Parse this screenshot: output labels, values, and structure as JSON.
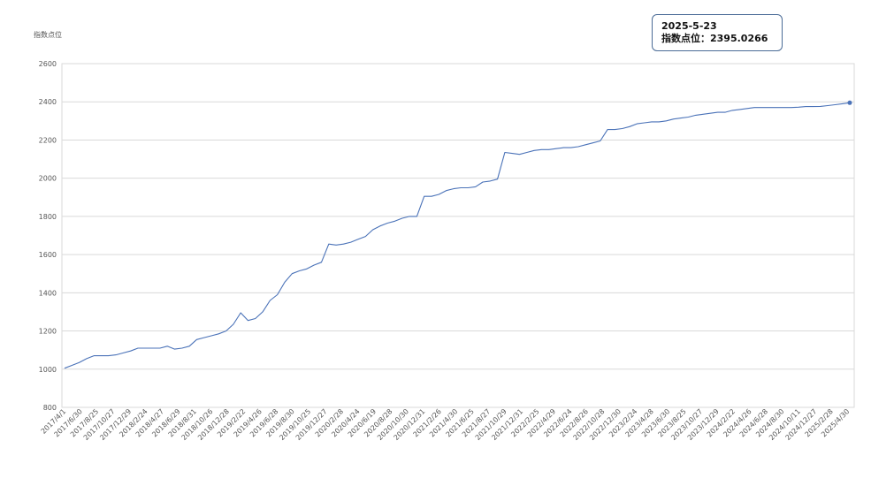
{
  "chart_data": {
    "type": "line",
    "ylabel": "指数点位",
    "ylim": [
      800,
      2600
    ],
    "yticks": [
      800,
      1000,
      1200,
      1400,
      1600,
      1800,
      2000,
      2200,
      2400,
      2600
    ],
    "grid": true,
    "x_tick_labels": [
      "2017/4/1",
      "2017/6/30",
      "2017/8/25",
      "2017/10/27",
      "2017/12/29",
      "2018/2/24",
      "2018/4/27",
      "2018/6/29",
      "2018/8/31",
      "2018/10/26",
      "2018/12/28",
      "2019/2/22",
      "2019/4/26",
      "2019/6/28",
      "2019/8/30",
      "2019/10/25",
      "2019/12/27",
      "2020/2/28",
      "2020/4/24",
      "2020/6/19",
      "2020/8/28",
      "2020/10/30",
      "2020/12/31",
      "2021/2/26",
      "2021/4/30",
      "2021/6/25",
      "2021/8/27",
      "2021/10/29",
      "2021/12/31",
      "2022/2/25",
      "2022/4/29",
      "2022/6/24",
      "2022/8/26",
      "2022/10/28",
      "2022/12/30",
      "2023/2/24",
      "2023/4/28",
      "2023/6/30",
      "2023/8/25",
      "2023/10/27",
      "2023/12/29",
      "2024/2/22",
      "2024/4/26",
      "2024/6/28",
      "2024/8/30",
      "2024/10/11",
      "2024/12/27",
      "2025/2/28",
      "2025/4/30"
    ],
    "values": [
      1005,
      1020,
      1035,
      1055,
      1070,
      1070,
      1070,
      1075,
      1085,
      1095,
      1110,
      1110,
      1110,
      1110,
      1120,
      1105,
      1110,
      1120,
      1155,
      1165,
      1175,
      1185,
      1200,
      1235,
      1295,
      1255,
      1265,
      1300,
      1360,
      1390,
      1455,
      1500,
      1515,
      1525,
      1545,
      1560,
      1655,
      1650,
      1655,
      1665,
      1680,
      1695,
      1730,
      1750,
      1765,
      1775,
      1790,
      1800,
      1800,
      1905,
      1905,
      1915,
      1935,
      1945,
      1950,
      1950,
      1955,
      1980,
      1985,
      1995,
      2135,
      2130,
      2125,
      2135,
      2145,
      2150,
      2150,
      2155,
      2160,
      2160,
      2165,
      2175,
      2185,
      2195,
      2255,
      2255,
      2260,
      2270,
      2285,
      2290,
      2295,
      2295,
      2300,
      2310,
      2315,
      2320,
      2330,
      2335,
      2340,
      2345,
      2345,
      2355,
      2360,
      2365,
      2370,
      2370,
      2370,
      2370,
      2370,
      2370,
      2372,
      2375,
      2375,
      2376,
      2380,
      2385,
      2390,
      2395.0266
    ],
    "tooltip": {
      "date": "2025-5-23",
      "label": "指数点位：",
      "value": "2395.0266"
    },
    "line_color": "#4a72b8"
  }
}
